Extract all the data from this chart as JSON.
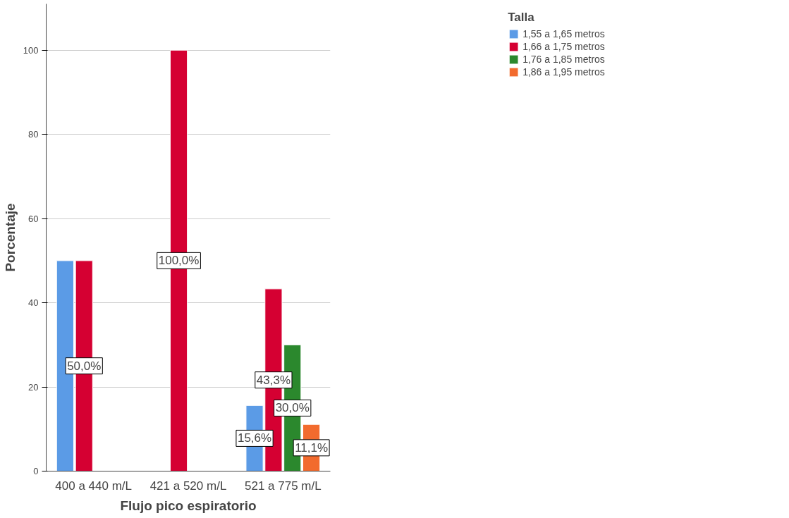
{
  "chart_data": {
    "type": "bar",
    "xlabel": "Flujo pico espiratorio",
    "ylabel": "Porcentaje",
    "legend_title": "Talla",
    "legend": "top right",
    "grid": "y",
    "categories": [
      "400 a 440 m/L",
      "421 a 520 m/L",
      "521 a 775 m/L"
    ],
    "ylim": [
      0,
      111
    ],
    "yticks": [
      0,
      20,
      40,
      60,
      80,
      100
    ],
    "series": [
      {
        "name": "1,55 a 1,65 metros",
        "color": "#5b9be6",
        "values": [
          50,
          null,
          15.6
        ],
        "value_labels": [
          null,
          null,
          "15,6%"
        ]
      },
      {
        "name": "1,66 a 1,75 metros",
        "color": "#d50032",
        "values": [
          50,
          100,
          43.3
        ],
        "value_labels": [
          "50,0%",
          "100,0%",
          "43,3%"
        ]
      },
      {
        "name": "1,76 a 1,85 metros",
        "color": "#2b882d",
        "values": [
          null,
          null,
          30.0
        ],
        "value_labels": [
          null,
          null,
          "30,0%"
        ]
      },
      {
        "name": "1,86 a 1,95 metros",
        "color": "#f26b2e",
        "values": [
          null,
          null,
          11.1
        ],
        "value_labels": [
          null,
          null,
          "11,1%"
        ]
      }
    ]
  }
}
